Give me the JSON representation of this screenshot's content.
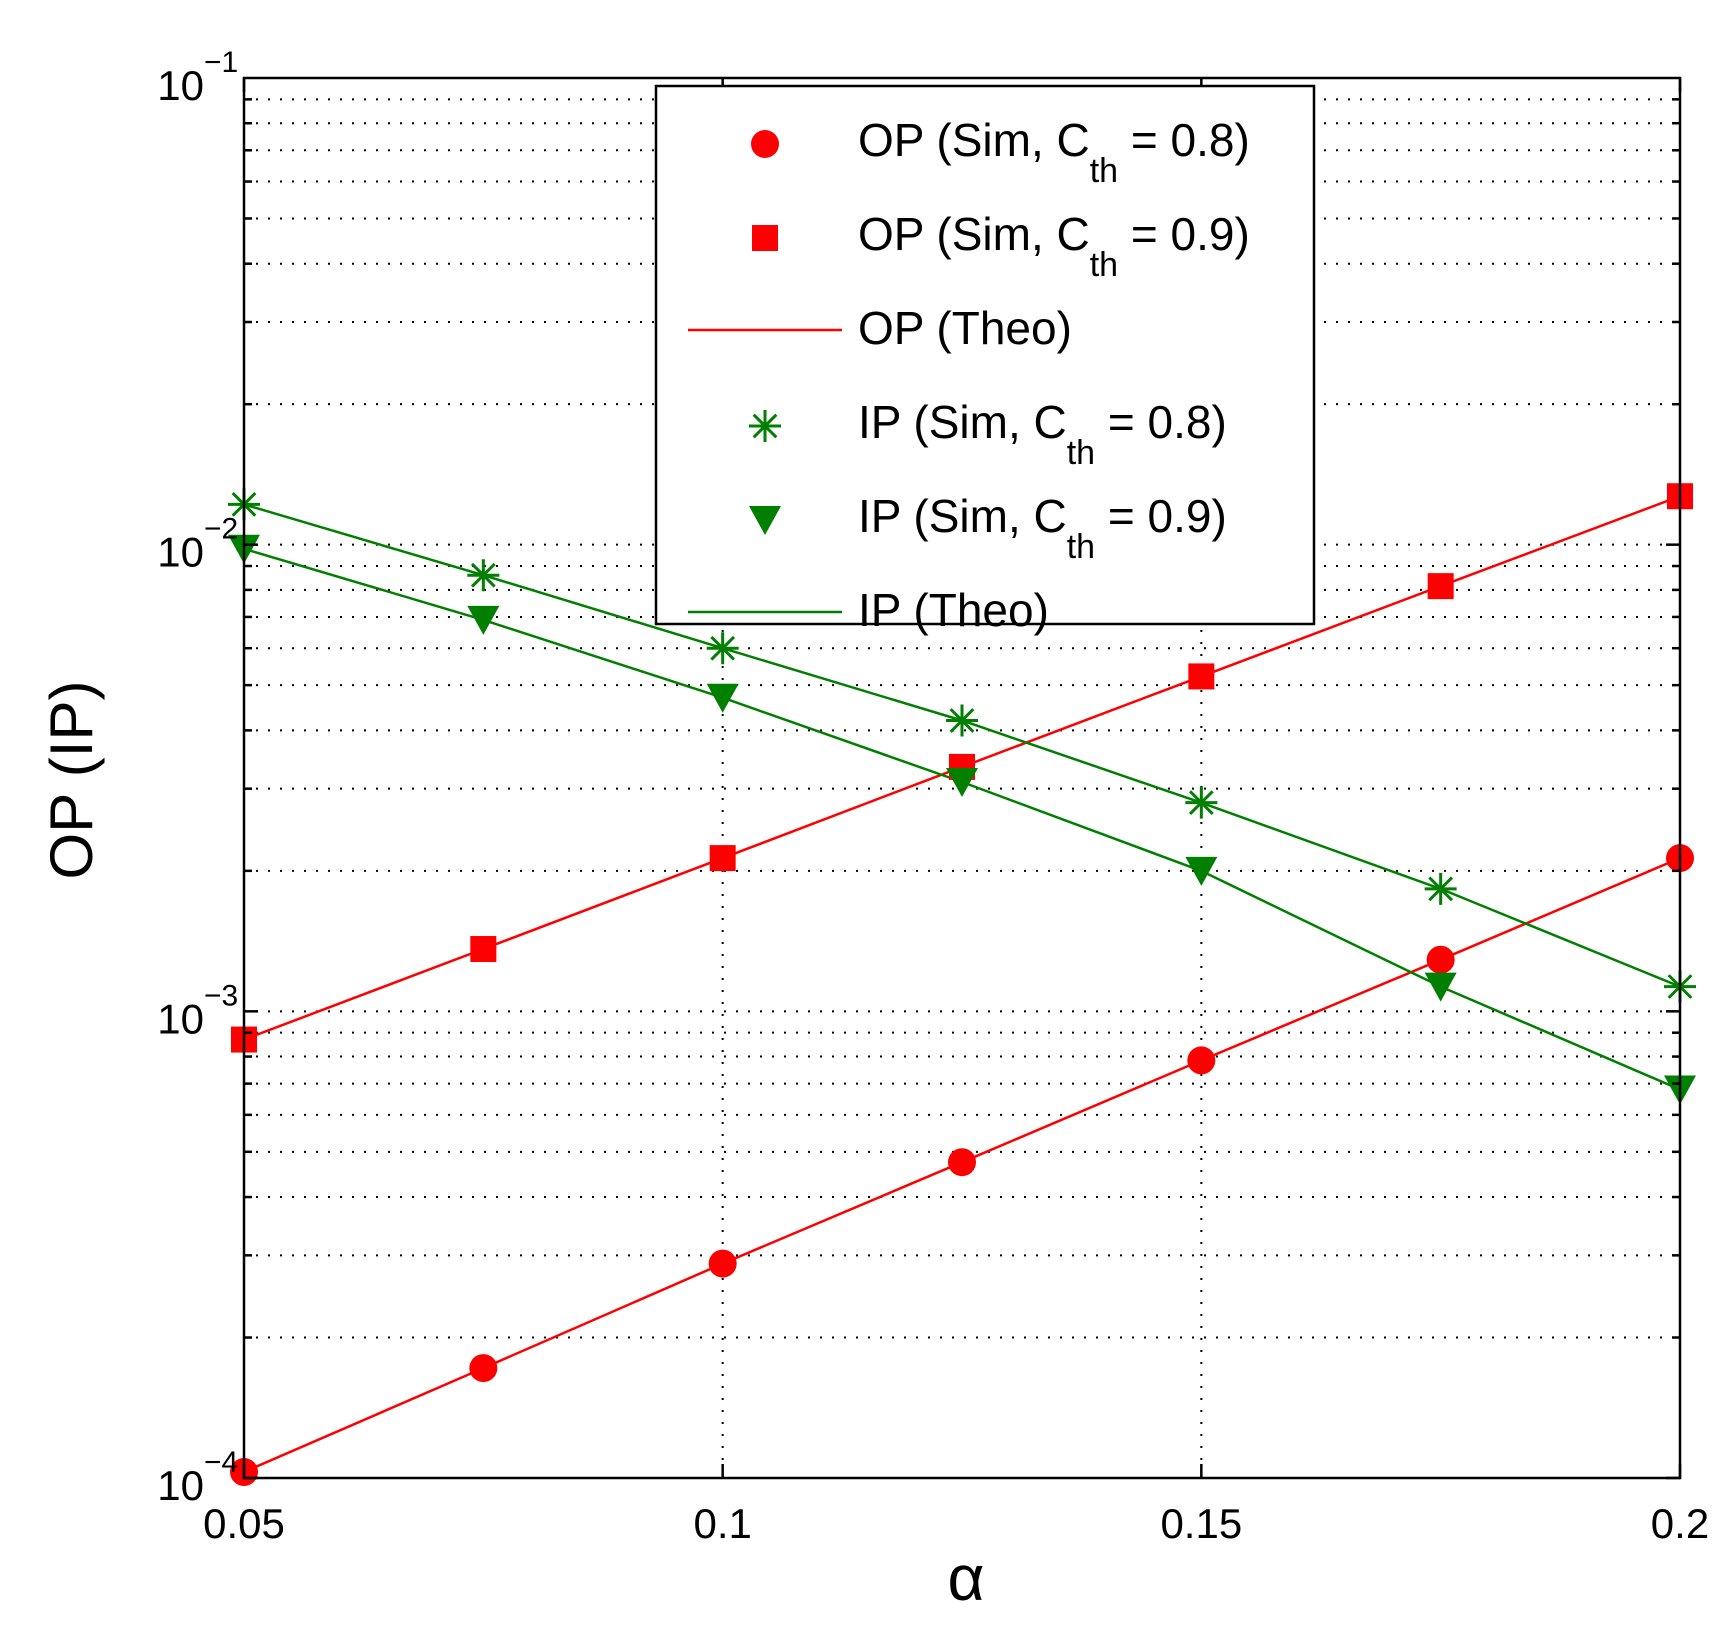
{
  "chart_data": {
    "type": "line",
    "xlabel": "α",
    "ylabel": "OP (IP)",
    "xlim": [
      0.05,
      0.2
    ],
    "ylim": [
      0.0001,
      0.1
    ],
    "yscale": "log",
    "grid": true,
    "legend_placement": "top-center",
    "x_ticks": [
      {
        "value": 0.05,
        "label": "0.05"
      },
      {
        "value": 0.1,
        "label": "0.1"
      },
      {
        "value": 0.15,
        "label": "0.15"
      },
      {
        "value": 0.2,
        "label": "0.2"
      }
    ],
    "y_ticks": [
      {
        "value": 0.0001,
        "base": "10",
        "exp": "−4"
      },
      {
        "value": 0.001,
        "base": "10",
        "exp": "−3"
      },
      {
        "value": 0.01,
        "base": "10",
        "exp": "−2"
      },
      {
        "value": 0.1,
        "base": "10",
        "exp": "−1"
      }
    ],
    "x": [
      0.05,
      0.075,
      0.1,
      0.125,
      0.15,
      0.175,
      0.2
    ],
    "series": [
      {
        "name": "OP (Sim, C_th = 0.8)",
        "legend": {
          "prefix": "OP (Sim, C",
          "sub": "th",
          "suffix": " = 0.8)"
        },
        "color": "#ff0000",
        "marker": "circle",
        "line": false,
        "values": [
          0.000103,
          0.000172,
          0.000288,
          0.000475,
          0.000785,
          0.00129,
          0.00213
        ]
      },
      {
        "name": "OP (Sim, C_th = 0.9)",
        "legend": {
          "prefix": "OP (Sim, C",
          "sub": "th",
          "suffix": " = 0.9)"
        },
        "color": "#ff0000",
        "marker": "square",
        "line": false,
        "values": [
          0.00087,
          0.00136,
          0.00213,
          0.00334,
          0.00522,
          0.00815,
          0.0127
        ]
      },
      {
        "name": "OP (Theo)",
        "legend": {
          "prefix": "OP (Theo)",
          "sub": "",
          "suffix": ""
        },
        "color": "#ff0000",
        "marker": "none",
        "line": true,
        "curves": [
          [
            0.000103,
            0.000172,
            0.000288,
            0.000475,
            0.000785,
            0.00129,
            0.00213
          ],
          [
            0.00087,
            0.00136,
            0.00213,
            0.00334,
            0.00522,
            0.00815,
            0.0127
          ]
        ]
      },
      {
        "name": "IP (Sim, C_th = 0.8)",
        "legend": {
          "prefix": "IP (Sim, C",
          "sub": "th",
          "suffix": " = 0.8)"
        },
        "color": "#007f00",
        "marker": "asterisk",
        "line": false,
        "values": [
          0.0122,
          0.0086,
          0.006,
          0.0042,
          0.0028,
          0.00183,
          0.00113
        ]
      },
      {
        "name": "IP (Sim, C_th = 0.9)",
        "legend": {
          "prefix": "IP (Sim, C",
          "sub": "th",
          "suffix": " = 0.9)"
        },
        "color": "#007f00",
        "marker": "triangle-down",
        "line": false,
        "values": [
          0.0098,
          0.0069,
          0.0047,
          0.0031,
          0.002,
          0.00113,
          0.00068
        ]
      },
      {
        "name": "IP (Theo)",
        "legend": {
          "prefix": "IP (Theo)",
          "sub": "",
          "suffix": ""
        },
        "color": "#007f00",
        "marker": "none",
        "line": true,
        "curves": [
          [
            0.0122,
            0.0086,
            0.006,
            0.0042,
            0.0028,
            0.00183,
            0.00113
          ],
          [
            0.0098,
            0.0069,
            0.0047,
            0.0031,
            0.002,
            0.00113,
            0.00068
          ]
        ]
      }
    ]
  }
}
